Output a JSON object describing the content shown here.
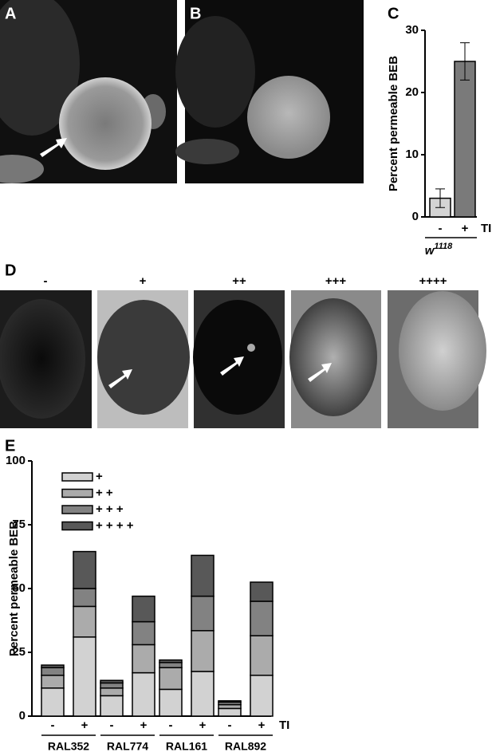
{
  "panel_labels": [
    "A",
    "B",
    "C",
    "D",
    "E"
  ],
  "score_labels": [
    "-",
    "+",
    "++",
    "+++",
    "++++"
  ],
  "chart_data": [
    {
      "type": "bar",
      "ylabel": "Percent permeable BEB",
      "categories": [
        "-",
        "+"
      ],
      "values": [
        3,
        25
      ],
      "errors": [
        1.5,
        3
      ],
      "colors": [
        "#d4d4d4",
        "#7a7a7a"
      ],
      "treatment": "TI",
      "xlabel": "w",
      "xlabel_sup": "1118",
      "ylim": [
        0,
        30
      ],
      "yticks": [
        0,
        10,
        20,
        30
      ]
    },
    {
      "type": "stacked_bar",
      "ylabel": "Percent permeable BEB",
      "categories": [
        "-",
        "+",
        "-",
        "+",
        "-",
        "+",
        "-",
        "+"
      ],
      "groups": [
        "RAL352",
        "RAL774",
        "RAL161",
        "RAL892"
      ],
      "treatment": "TI",
      "series": [
        {
          "name": "+",
          "color": "#d2d2d2",
          "values": [
            11,
            31,
            8,
            17,
            10.5,
            17.5,
            3,
            16
          ]
        },
        {
          "name": "+ +",
          "color": "#ababab",
          "values": [
            5,
            12,
            3,
            11,
            8.5,
            16,
            1.5,
            15.5
          ]
        },
        {
          "name": "+ + +",
          "color": "#828282",
          "values": [
            3,
            7,
            2,
            9,
            2,
            13.5,
            1,
            13.5
          ]
        },
        {
          "name": "+ + + +",
          "color": "#585858",
          "values": [
            1,
            14.5,
            1,
            10,
            1,
            16,
            0.5,
            7.5
          ]
        }
      ],
      "ylim": [
        0,
        100
      ],
      "yticks": [
        0,
        25,
        50,
        75,
        100
      ]
    }
  ]
}
